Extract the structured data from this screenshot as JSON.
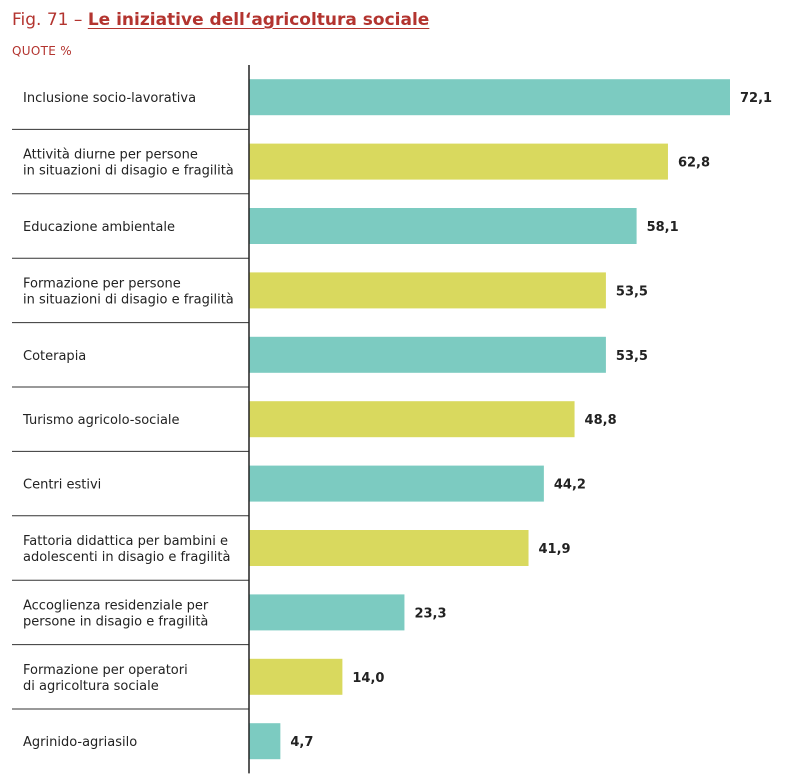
{
  "figure": {
    "number_label": "Fig. 71 –",
    "title": "Le iniziative dell‘agricoltura sociale",
    "subtitle": "QUOTE %"
  },
  "colors": {
    "teal": "#7ccbc1",
    "yellow": "#d9d95e",
    "title_red": "#b3342f"
  },
  "chart_data": {
    "type": "bar",
    "orientation": "horizontal",
    "title": "Le iniziative dell‘agricoltura sociale",
    "ylabel": "QUOTE %",
    "xlim": [
      0,
      75
    ],
    "grid": false,
    "categories": [
      [
        "Inclusione socio-lavorativa"
      ],
      [
        "Attività diurne per persone",
        "in situazioni di disagio e fragilità"
      ],
      [
        "Educazione ambientale"
      ],
      [
        "Formazione per persone",
        "in situazioni di disagio e fragilità"
      ],
      [
        "Coterapia"
      ],
      [
        "Turismo agricolo-sociale"
      ],
      [
        "Centri estivi"
      ],
      [
        "Fattoria didattica per bambini e",
        "adolescenti in  disagio e fragilità"
      ],
      [
        "Accoglienza residenziale per",
        "persone in disagio e fragilità"
      ],
      [
        "Formazione per operatori",
        "di agricoltura sociale"
      ],
      [
        "Agrinido-agriasilo"
      ]
    ],
    "values": [
      72.1,
      62.8,
      58.1,
      53.5,
      53.5,
      48.8,
      44.2,
      41.9,
      23.3,
      14.0,
      4.7
    ],
    "value_labels": [
      "72,1",
      "62,8",
      "58,1",
      "53,5",
      "53,5",
      "48,8",
      "44,2",
      "41,9",
      "23,3",
      "14,0",
      "4,7"
    ],
    "bar_colors": [
      "teal",
      "yellow",
      "teal",
      "yellow",
      "teal",
      "yellow",
      "teal",
      "yellow",
      "teal",
      "yellow",
      "teal"
    ]
  }
}
